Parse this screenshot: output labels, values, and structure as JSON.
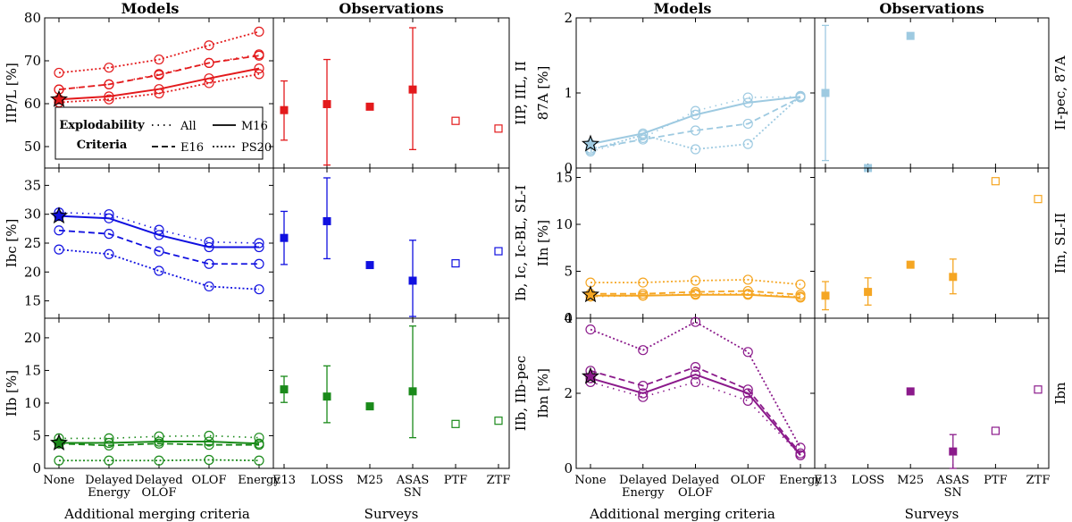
{
  "headers": {
    "models": "Models",
    "observations": "Observations"
  },
  "xlabels": {
    "models": "Additional merging criteria",
    "surveys": "Surveys"
  },
  "models_ticks": [
    "None",
    "Delayed\nEnergy",
    "Delayed\nOLOF",
    "OLOF",
    "Energy"
  ],
  "survey_ticks": [
    "E13",
    "LOSS",
    "M25",
    "ASAS\nSN",
    "PTF",
    "ZTF"
  ],
  "legend": {
    "title_line1": "Explodability",
    "title_line2": "Criteria",
    "entries": [
      {
        "label": "All",
        "style": "dotted-sparse"
      },
      {
        "label": "M16",
        "style": "solid"
      },
      {
        "label": "E16",
        "style": "dashed"
      },
      {
        "label": "PS20",
        "style": "dotted"
      }
    ]
  },
  "chart_data": [
    {
      "type": "line",
      "panel": "IIP/L",
      "color": "#e31a1c",
      "ylabel": "IIP/L [%]",
      "obs_label": "IIP, IIL, II",
      "ylim": [
        45,
        80
      ],
      "yticks": [
        50,
        60,
        70,
        80
      ],
      "series": [
        {
          "name": "All",
          "values": [
            63.3,
            64.5,
            66.9,
            69.5,
            71.5
          ]
        },
        {
          "name": "M16",
          "values": [
            61.0,
            61.7,
            63.4,
            65.9,
            68.2
          ]
        },
        {
          "name": "E16",
          "values": [
            63.3,
            64.5,
            66.7,
            69.5,
            71.2
          ]
        },
        {
          "name": "PS20",
          "values": [
            67.2,
            68.4,
            70.3,
            73.6,
            76.8
          ]
        },
        {
          "name": "PS20-low",
          "values": [
            60.3,
            61.0,
            62.4,
            64.8,
            66.9
          ]
        }
      ],
      "star": 61.0,
      "observations": [
        {
          "survey": "E13",
          "value": 58.5,
          "low": 51.5,
          "high": 65.3,
          "filled": true
        },
        {
          "survey": "LOSS",
          "value": 59.9,
          "low": 45.7,
          "high": 70.3,
          "filled": true
        },
        {
          "survey": "M25",
          "value": 59.3,
          "filled": true
        },
        {
          "survey": "ASAS\nSN",
          "value": 63.3,
          "low": 49.3,
          "high": 77.7,
          "filled": true
        },
        {
          "survey": "PTF",
          "value": 56.0,
          "filled": false
        },
        {
          "survey": "ZTF",
          "value": 54.2,
          "filled": false
        }
      ]
    },
    {
      "type": "line",
      "panel": "Ibc",
      "color": "#1010e0",
      "ylabel": "Ibc [%]",
      "obs_label": "Ib, Ic, Ic-BL, SL-I",
      "ylim": [
        12,
        38
      ],
      "yticks": [
        15,
        20,
        25,
        30,
        35
      ],
      "series": [
        {
          "name": "All",
          "values": [
            30.3,
            30.0,
            27.3,
            25.2,
            25.0
          ]
        },
        {
          "name": "M16",
          "values": [
            29.7,
            29.3,
            26.4,
            24.3,
            24.3
          ]
        },
        {
          "name": "E16",
          "values": [
            27.2,
            26.6,
            23.6,
            21.4,
            21.4
          ]
        },
        {
          "name": "PS20",
          "values": [
            23.9,
            23.1,
            20.2,
            17.5,
            17.0
          ]
        }
      ],
      "star": 29.7,
      "observations": [
        {
          "survey": "E13",
          "value": 25.9,
          "low": 21.3,
          "high": 30.5,
          "filled": true
        },
        {
          "survey": "LOSS",
          "value": 28.8,
          "low": 22.3,
          "high": 36.3,
          "filled": true
        },
        {
          "survey": "M25",
          "value": 21.2,
          "filled": true
        },
        {
          "survey": "ASAS\nSN",
          "value": 18.5,
          "low": 12.3,
          "high": 25.5,
          "filled": true
        },
        {
          "survey": "PTF",
          "value": 21.5,
          "filled": false
        },
        {
          "survey": "ZTF",
          "value": 23.6,
          "filled": false
        }
      ]
    },
    {
      "type": "line",
      "panel": "IIb",
      "color": "#1a8a1a",
      "ylabel": "IIb [%]",
      "obs_label": "IIb, IIb-pec",
      "ylim": [
        0,
        23
      ],
      "yticks": [
        0,
        5,
        10,
        15,
        20
      ],
      "series": [
        {
          "name": "All",
          "values": [
            4.6,
            4.6,
            4.9,
            5.0,
            4.7
          ]
        },
        {
          "name": "M16",
          "values": [
            3.9,
            3.9,
            4.1,
            4.1,
            3.8
          ]
        },
        {
          "name": "E16",
          "values": [
            3.8,
            3.5,
            3.8,
            3.6,
            3.6
          ]
        },
        {
          "name": "PS20",
          "values": [
            1.2,
            1.2,
            1.2,
            1.3,
            1.2
          ]
        }
      ],
      "star": 3.9,
      "observations": [
        {
          "survey": "E13",
          "value": 12.1,
          "low": 10.1,
          "high": 14.1,
          "filled": true
        },
        {
          "survey": "LOSS",
          "value": 11.0,
          "low": 7.0,
          "high": 15.7,
          "filled": true
        },
        {
          "survey": "M25",
          "value": 9.5,
          "filled": true
        },
        {
          "survey": "ASAS\nSN",
          "value": 11.8,
          "low": 4.7,
          "high": 21.8,
          "filled": true
        },
        {
          "survey": "PTF",
          "value": 6.8,
          "filled": false
        },
        {
          "survey": "ZTF",
          "value": 7.3,
          "filled": false
        }
      ]
    },
    {
      "type": "line",
      "panel": "87A",
      "color": "#9ecae1",
      "ylabel": "87A [%]",
      "obs_label": "II-pec, 87A",
      "ylim": [
        0,
        2
      ],
      "yticks": [
        0,
        1,
        2
      ],
      "series": [
        {
          "name": "All",
          "values": [
            0.22,
            0.4,
            0.76,
            0.94,
            0.95
          ]
        },
        {
          "name": "M16",
          "values": [
            0.32,
            0.46,
            0.71,
            0.87,
            0.95
          ]
        },
        {
          "name": "E16",
          "values": [
            0.26,
            0.38,
            0.5,
            0.59,
            0.94
          ]
        },
        {
          "name": "PS20",
          "values": [
            0.24,
            0.44,
            0.25,
            0.32,
            0.96
          ]
        }
      ],
      "star": 0.32,
      "observations": [
        {
          "survey": "E13",
          "value": 1.0,
          "low": 0.1,
          "high": 1.9,
          "filled": true
        },
        {
          "survey": "LOSS",
          "value": 0.0,
          "filled": true
        },
        {
          "survey": "M25",
          "value": 1.76,
          "filled": true
        }
      ]
    },
    {
      "type": "line",
      "panel": "IIn",
      "color": "#f5a623",
      "ylabel": "IIn [%]",
      "obs_label": "IIn, SL-II",
      "ylim": [
        0,
        16
      ],
      "yticks": [
        0,
        5,
        10,
        15
      ],
      "series": [
        {
          "name": "All",
          "values": [
            2.3,
            2.4,
            2.6,
            2.6,
            2.3
          ]
        },
        {
          "name": "M16",
          "values": [
            2.4,
            2.4,
            2.5,
            2.5,
            2.2
          ]
        },
        {
          "name": "E16",
          "values": [
            2.6,
            2.6,
            2.8,
            2.9,
            2.5
          ]
        },
        {
          "name": "PS20",
          "values": [
            3.8,
            3.8,
            4.0,
            4.1,
            3.6
          ]
        }
      ],
      "star": 2.5,
      "observations": [
        {
          "survey": "E13",
          "value": 2.4,
          "low": 0.9,
          "high": 3.9,
          "filled": true
        },
        {
          "survey": "LOSS",
          "value": 2.8,
          "low": 1.4,
          "high": 4.3,
          "filled": true
        },
        {
          "survey": "M25",
          "value": 5.7,
          "filled": true
        },
        {
          "survey": "ASAS\nSN",
          "value": 4.4,
          "low": 2.6,
          "high": 6.3,
          "filled": true
        },
        {
          "survey": "PTF",
          "value": 14.6,
          "filled": false
        },
        {
          "survey": "ZTF",
          "value": 12.7,
          "filled": false
        }
      ]
    },
    {
      "type": "line",
      "panel": "Ibn",
      "color": "#8b1a8b",
      "ylabel": "Ibn [%]",
      "obs_label": "Ibn",
      "ylim": [
        0,
        4
      ],
      "yticks": [
        0,
        2,
        4
      ],
      "series": [
        {
          "name": "All",
          "values": [
            2.3,
            1.9,
            2.3,
            1.8,
            0.35
          ]
        },
        {
          "name": "M16",
          "values": [
            2.4,
            2.0,
            2.5,
            2.0,
            0.35
          ]
        },
        {
          "name": "E16",
          "values": [
            2.6,
            2.2,
            2.7,
            2.1,
            0.4
          ]
        },
        {
          "name": "PS20",
          "values": [
            3.7,
            3.15,
            3.9,
            3.1,
            0.55
          ]
        }
      ],
      "star": 2.45,
      "observations": [
        {
          "survey": "M25",
          "value": 2.05,
          "filled": true
        },
        {
          "survey": "ASAS\nSN",
          "value": 0.45,
          "low": 0.0,
          "high": 0.9,
          "filled": true
        },
        {
          "survey": "PTF",
          "value": 1.0,
          "filled": false
        },
        {
          "survey": "ZTF",
          "value": 2.1,
          "filled": false
        }
      ]
    }
  ]
}
